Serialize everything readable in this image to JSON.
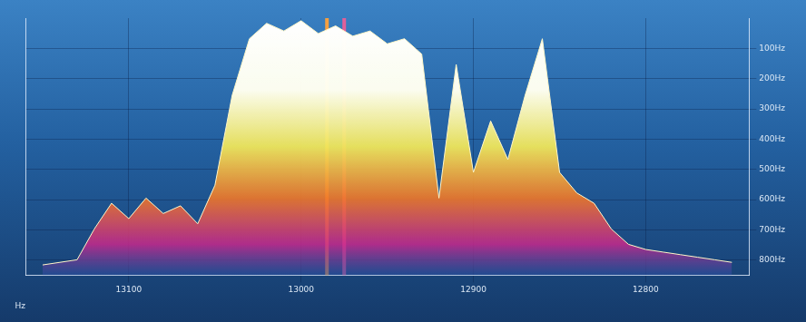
{
  "chart_data": {
    "type": "line",
    "xlabel": "Hz",
    "xlim": [
      13160,
      12740
    ],
    "xticks": [
      13100,
      13000,
      12900,
      12800
    ],
    "ylim": [
      850,
      0
    ],
    "yticks": [
      {
        "value": 100,
        "label": "100Hz"
      },
      {
        "value": 200,
        "label": "200Hz"
      },
      {
        "value": 300,
        "label": "300Hz"
      },
      {
        "value": 400,
        "label": "400Hz"
      },
      {
        "value": 500,
        "label": "500Hz"
      },
      {
        "value": 600,
        "label": "600Hz"
      },
      {
        "value": 700,
        "label": "700Hz"
      },
      {
        "value": 800,
        "label": "800Hz"
      }
    ],
    "y2lim": [
      0,
      100
    ],
    "grid": true,
    "series": [
      {
        "type": "area",
        "axis": "y2",
        "color": "#fff6c8",
        "x": [
          13150,
          13140,
          13130,
          13120,
          13110,
          13100,
          13090,
          13080,
          13070,
          13060,
          13050,
          13040,
          13030,
          13020,
          13010,
          13000,
          12990,
          12980,
          12970,
          12960,
          12950,
          12940,
          12930,
          12920,
          12910,
          12900,
          12890,
          12880,
          12870,
          12860,
          12850,
          12840,
          12830,
          12820,
          12810,
          12800,
          12790,
          12780,
          12770,
          12760,
          12750
        ],
        "values": [
          4,
          5,
          6,
          18,
          28,
          22,
          30,
          24,
          27,
          20,
          35,
          70,
          92,
          98,
          95,
          99,
          94,
          97,
          93,
          95,
          90,
          92,
          86,
          30,
          82,
          40,
          60,
          45,
          70,
          92,
          40,
          32,
          28,
          18,
          12,
          10,
          9,
          8,
          7,
          6,
          5
        ]
      },
      {
        "type": "line",
        "axis": "y",
        "color": "#f5a040",
        "x": [
          12985,
          12985
        ],
        "values": [
          0,
          850
        ]
      },
      {
        "type": "line",
        "axis": "y",
        "color": "#e0609a",
        "x": [
          12975,
          12975
        ],
        "values": [
          0,
          850
        ]
      }
    ]
  }
}
